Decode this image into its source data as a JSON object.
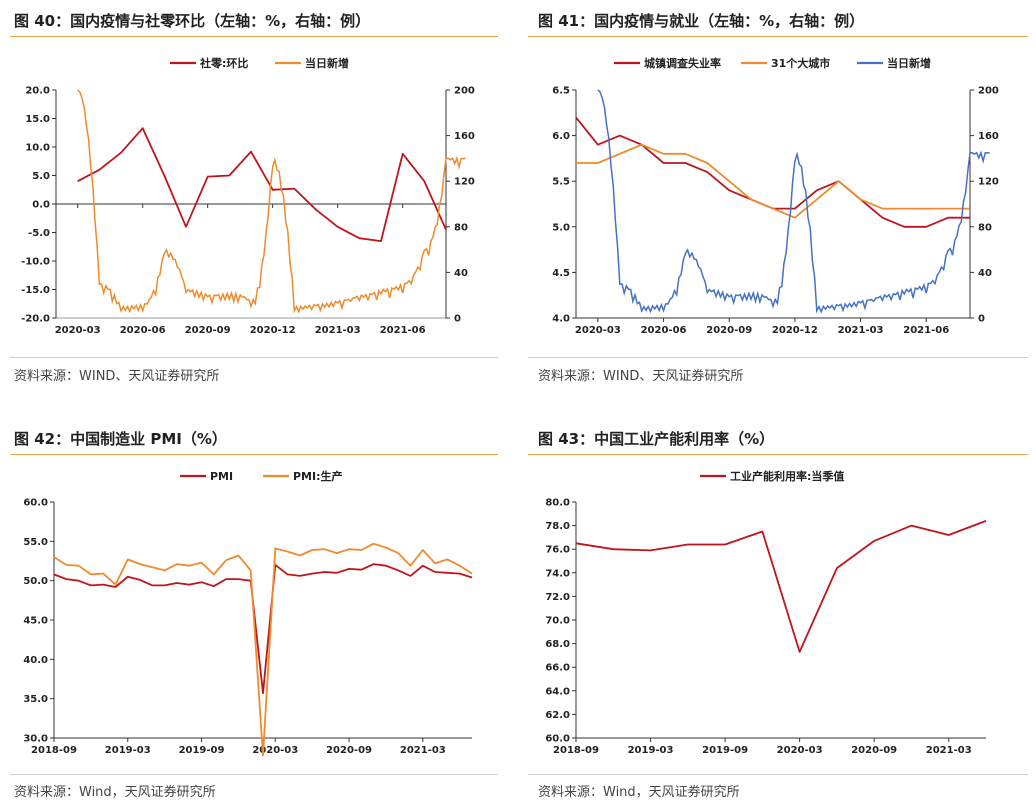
{
  "panels": [
    {
      "title": "图 40：国内疫情与社零环比（左轴：%，右轴：例）",
      "source": "资料来源：WIND、天风证券研究所"
    },
    {
      "title": "图 41：国内疫情与就业（左轴：%，右轴：例）",
      "source": "资料来源：WIND、天风证券研究所"
    },
    {
      "title": "图 42：中国制造业 PMI（%）",
      "source": "资料来源：Wind，天风证券研究所"
    },
    {
      "title": "图 43：中国工业产能利用率（%）",
      "source": "资料来源：Wind，天风证券研究所"
    }
  ],
  "colors": {
    "red": "#c0141c",
    "orange": "#f08a2c",
    "blue": "#4472c4",
    "accent": "#e8a44a"
  },
  "chart_data": [
    {
      "type": "line",
      "legend": [
        "社零:环比",
        "当日新增"
      ],
      "left_axis": {
        "ylim": [
          -20,
          20
        ],
        "ticks": [
          "20.0",
          "15.0",
          "10.0",
          "5.0",
          "0.0",
          "-5.0",
          "-10.0",
          "-15.0",
          "-20.0"
        ]
      },
      "right_axis": {
        "ylim": [
          0,
          200
        ],
        "ticks": [
          "200",
          "160",
          "120",
          "80",
          "40",
          "0"
        ]
      },
      "x_ticks": [
        "2020-03",
        "2020-06",
        "2020-09",
        "2020-12",
        "2021-03",
        "2021-06"
      ],
      "series": [
        {
          "name": "社零:环比",
          "axis": "left",
          "x": [
            "2020-03",
            "2020-04",
            "2020-05",
            "2020-06",
            "2020-07",
            "2020-08",
            "2020-09",
            "2020-10",
            "2020-11",
            "2020-12",
            "2021-01",
            "2021-02",
            "2021-03",
            "2021-04",
            "2021-05",
            "2021-06",
            "2021-07",
            "2021-08"
          ],
          "values": [
            4.0,
            6.0,
            9.0,
            13.3,
            5.0,
            -4.0,
            4.8,
            5.0,
            9.2,
            2.5,
            2.7,
            -1.0,
            -4.0,
            -6.0,
            -6.5,
            8.8,
            4.0,
            -4.5
          ]
        },
        {
          "name": "当日新增",
          "axis": "right",
          "x": [
            "2020-03",
            "2020-04",
            "2020-05",
            "2020-06",
            "2020-07",
            "2020-08",
            "2020-09",
            "2020-10",
            "2020-11",
            "2020-12",
            "2021-01",
            "2021-02",
            "2021-03",
            "2021-04",
            "2021-05",
            "2021-06",
            "2021-07",
            "2021-08"
          ],
          "values": [
            200,
            30,
            10,
            12,
            60,
            25,
            20,
            22,
            15,
            140,
            10,
            12,
            15,
            20,
            25,
            30,
            60,
            140
          ]
        }
      ]
    },
    {
      "type": "line",
      "legend": [
        "城镇调查失业率",
        "31个大城市",
        "当日新增"
      ],
      "left_axis": {
        "ylim": [
          4.0,
          6.5
        ],
        "ticks": [
          "6.5",
          "6.0",
          "5.5",
          "5.0",
          "4.5",
          "4.0"
        ]
      },
      "right_axis": {
        "ylim": [
          0,
          200
        ],
        "ticks": [
          "200",
          "160",
          "120",
          "80",
          "40",
          "0"
        ]
      },
      "x_ticks": [
        "2020-03",
        "2020-06",
        "2020-09",
        "2020-12",
        "2021-03",
        "2021-06"
      ],
      "series": [
        {
          "name": "城镇调查失业率",
          "axis": "left",
          "x": [
            "2020-02",
            "2020-03",
            "2020-04",
            "2020-05",
            "2020-06",
            "2020-07",
            "2020-08",
            "2020-09",
            "2020-10",
            "2020-11",
            "2020-12",
            "2021-01",
            "2021-02",
            "2021-03",
            "2021-04",
            "2021-05",
            "2021-06",
            "2021-07",
            "2021-08"
          ],
          "values": [
            6.2,
            5.9,
            6.0,
            5.9,
            5.7,
            5.7,
            5.6,
            5.4,
            5.3,
            5.2,
            5.2,
            5.4,
            5.5,
            5.3,
            5.1,
            5.0,
            5.0,
            5.1,
            5.1
          ]
        },
        {
          "name": "31个大城市",
          "axis": "left",
          "x": [
            "2020-02",
            "2020-03",
            "2020-04",
            "2020-05",
            "2020-06",
            "2020-07",
            "2020-08",
            "2020-09",
            "2020-10",
            "2020-11",
            "2020-12",
            "2021-01",
            "2021-02",
            "2021-03",
            "2021-04",
            "2021-05",
            "2021-06",
            "2021-07",
            "2021-08"
          ],
          "values": [
            5.7,
            5.7,
            5.8,
            5.9,
            5.8,
            5.8,
            5.7,
            5.5,
            5.3,
            5.2,
            5.1,
            5.3,
            5.5,
            5.3,
            5.2,
            5.2,
            5.2,
            5.2,
            5.2
          ]
        },
        {
          "name": "当日新增",
          "axis": "right",
          "x": [
            "2020-03",
            "2020-04",
            "2020-05",
            "2020-06",
            "2020-07",
            "2020-08",
            "2020-09",
            "2020-10",
            "2020-11",
            "2020-12",
            "2021-01",
            "2021-02",
            "2021-03",
            "2021-04",
            "2021-05",
            "2021-06",
            "2021-07",
            "2021-08"
          ],
          "values": [
            200,
            30,
            10,
            12,
            60,
            25,
            20,
            22,
            15,
            145,
            10,
            12,
            15,
            20,
            25,
            30,
            60,
            145
          ]
        }
      ]
    },
    {
      "type": "line",
      "legend": [
        "PMI",
        "PMI:生产"
      ],
      "ylim": [
        30.0,
        60.0
      ],
      "y_ticks": [
        "60.0",
        "55.0",
        "50.0",
        "45.0",
        "40.0",
        "35.0",
        "30.0"
      ],
      "x_ticks": [
        "2018-09",
        "2019-03",
        "2019-09",
        "2020-03",
        "2020-09",
        "2021-03"
      ],
      "series": [
        {
          "name": "PMI",
          "x": [
            "2018-09",
            "2018-10",
            "2018-11",
            "2018-12",
            "2019-01",
            "2019-02",
            "2019-03",
            "2019-04",
            "2019-05",
            "2019-06",
            "2019-07",
            "2019-08",
            "2019-09",
            "2019-10",
            "2019-11",
            "2019-12",
            "2020-01",
            "2020-02",
            "2020-03",
            "2020-04",
            "2020-05",
            "2020-06",
            "2020-07",
            "2020-08",
            "2020-09",
            "2020-10",
            "2020-11",
            "2020-12",
            "2021-01",
            "2021-02",
            "2021-03",
            "2021-04",
            "2021-05",
            "2021-06",
            "2021-07"
          ],
          "values": [
            50.8,
            50.2,
            50.0,
            49.4,
            49.5,
            49.2,
            50.5,
            50.1,
            49.4,
            49.4,
            49.7,
            49.5,
            49.8,
            49.3,
            50.2,
            50.2,
            50.0,
            35.7,
            52.0,
            50.8,
            50.6,
            50.9,
            51.1,
            51.0,
            51.5,
            51.4,
            52.1,
            51.9,
            51.3,
            50.6,
            51.9,
            51.1,
            51.0,
            50.9,
            50.4
          ]
        },
        {
          "name": "PMI:生产",
          "x": [
            "2018-09",
            "2018-10",
            "2018-11",
            "2018-12",
            "2019-01",
            "2019-02",
            "2019-03",
            "2019-04",
            "2019-05",
            "2019-06",
            "2019-07",
            "2019-08",
            "2019-09",
            "2019-10",
            "2019-11",
            "2019-12",
            "2020-01",
            "2020-02",
            "2020-03",
            "2020-04",
            "2020-05",
            "2020-06",
            "2020-07",
            "2020-08",
            "2020-09",
            "2020-10",
            "2020-11",
            "2020-12",
            "2021-01",
            "2021-02",
            "2021-03",
            "2021-04",
            "2021-05",
            "2021-06",
            "2021-07"
          ],
          "values": [
            53.0,
            52.0,
            51.9,
            50.8,
            50.9,
            49.5,
            52.7,
            52.1,
            51.7,
            51.3,
            52.1,
            51.9,
            52.3,
            50.8,
            52.6,
            53.2,
            51.3,
            27.8,
            54.1,
            53.7,
            53.2,
            53.9,
            54.0,
            53.5,
            54.0,
            53.9,
            54.7,
            54.2,
            53.5,
            51.9,
            53.9,
            52.2,
            52.7,
            51.9,
            50.9
          ]
        }
      ]
    },
    {
      "type": "line",
      "legend": [
        "工业产能利用率:当季值"
      ],
      "ylim": [
        60.0,
        80.0
      ],
      "y_ticks": [
        "80.0",
        "78.0",
        "76.0",
        "74.0",
        "72.0",
        "70.0",
        "68.0",
        "66.0",
        "64.0",
        "62.0",
        "60.0"
      ],
      "x_ticks": [
        "2018-09",
        "2019-03",
        "2019-09",
        "2020-03",
        "2020-09",
        "2021-03"
      ],
      "series": [
        {
          "name": "工业产能利用率:当季值",
          "x": [
            "2018-09",
            "2018-12",
            "2019-03",
            "2019-06",
            "2019-09",
            "2019-12",
            "2020-03",
            "2020-06",
            "2020-09",
            "2020-12",
            "2021-03",
            "2021-06"
          ],
          "values": [
            76.5,
            76.0,
            75.9,
            76.4,
            76.4,
            77.5,
            67.3,
            74.4,
            76.7,
            78.0,
            77.2,
            78.4
          ]
        }
      ]
    }
  ]
}
